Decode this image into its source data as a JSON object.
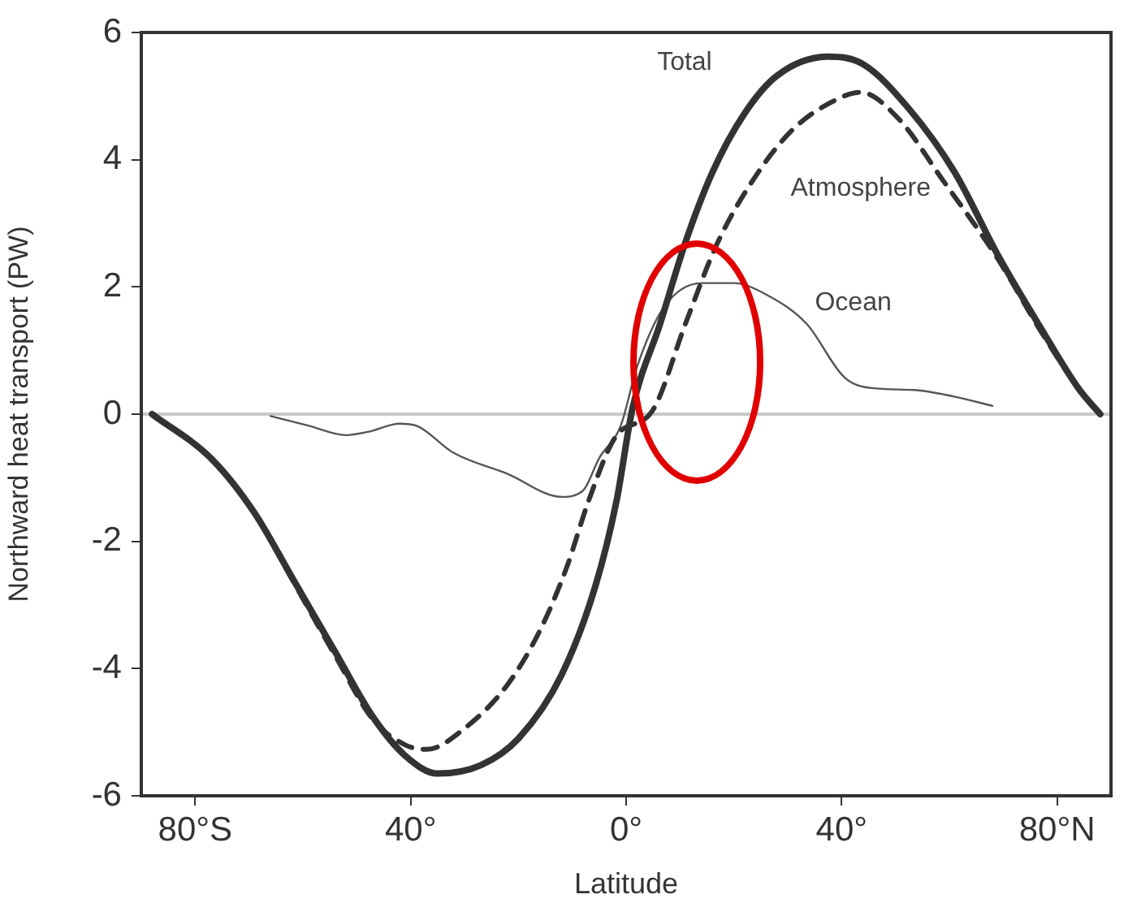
{
  "chart_data": {
    "type": "line",
    "xlabel": "Latitude",
    "ylabel": "Northward heat transport (PW)",
    "xlim": [
      -90,
      90
    ],
    "ylim": [
      -6,
      6
    ],
    "xticks": [
      {
        "value": -80,
        "label": "80°S"
      },
      {
        "value": -40,
        "label": "40°"
      },
      {
        "value": 0,
        "label": "0°"
      },
      {
        "value": 40,
        "label": "40°"
      },
      {
        "value": 80,
        "label": "80°N"
      }
    ],
    "yticks": [
      -6,
      -4,
      -2,
      0,
      2,
      4,
      6
    ],
    "grid": false,
    "legend": false,
    "marker": "none",
    "ref_lines": [
      {
        "axis": "y",
        "value": 0,
        "color": "#c8c8c8"
      }
    ],
    "series": [
      {
        "name": "Total",
        "color": "#333333",
        "line_style": "solid",
        "x": [
          -88,
          -77,
          -69,
          -62,
          -54,
          -47,
          -41,
          -35,
          -27,
          -20,
          -12,
          -5.7,
          -1.8,
          1.2,
          6.3,
          11,
          16,
          22,
          28,
          37.5,
          44,
          52.5,
          61,
          69,
          77,
          84,
          88
        ],
        "values": [
          0,
          -0.7,
          -1.55,
          -2.57,
          -3.74,
          -4.76,
          -5.37,
          -5.65,
          -5.52,
          -5.1,
          -4.1,
          -2.7,
          -1.37,
          0.1,
          1.42,
          2.7,
          3.8,
          4.73,
          5.32,
          5.62,
          5.5,
          4.8,
          3.8,
          2.5,
          1.35,
          0.4,
          0
        ]
      },
      {
        "name": "Atmosphere",
        "color": "#333333",
        "line_style": "dashed",
        "x": [
          -88,
          -77,
          -69,
          -62,
          -54,
          -47,
          -41,
          -37,
          -30,
          -22,
          -16,
          -11,
          -7,
          -2,
          5,
          11,
          17,
          24.5,
          31,
          38,
          43.5,
          50.5,
          58.6,
          69,
          77,
          84,
          88
        ],
        "values": [
          0,
          -0.7,
          -1.55,
          -2.6,
          -3.8,
          -4.8,
          -5.2,
          -5.27,
          -4.94,
          -4.25,
          -3.4,
          -2.4,
          -1.37,
          -0.36,
          0.07,
          1.42,
          2.7,
          3.8,
          4.48,
          4.9,
          5.06,
          4.65,
          3.7,
          2.44,
          1.3,
          0.4,
          0
        ]
      },
      {
        "name": "Ocean",
        "color": "#555555",
        "line_style": "solid",
        "x": [
          -66,
          -59,
          -52,
          -48,
          -42,
          -39,
          -32,
          -22,
          -12,
          -8,
          -5,
          -1,
          2,
          7,
          14,
          20,
          26,
          33.5,
          40.5,
          45.6,
          53.5,
          60.7,
          68
        ],
        "values": [
          -0.03,
          -0.18,
          -0.33,
          -0.28,
          -0.15,
          -0.18,
          -0.61,
          -0.94,
          -1.3,
          -1.2,
          -0.69,
          -0.18,
          0.74,
          1.68,
          2.06,
          2.06,
          1.88,
          1.42,
          0.58,
          0.41,
          0.38,
          0.28,
          0.13
        ]
      }
    ]
  }
}
